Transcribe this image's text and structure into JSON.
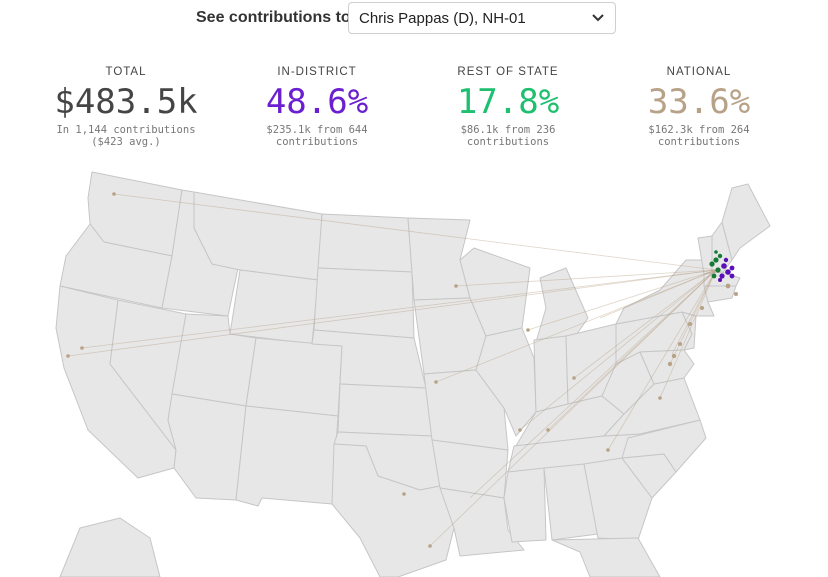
{
  "selector": {
    "label": "See contributions to",
    "selected": "Chris Pappas (D), NH-01"
  },
  "stats": [
    {
      "title": "TOTAL",
      "value": "$483.5k",
      "desc1": "In 1,144 contributions",
      "desc2": "($423 avg.)",
      "color": "#454545"
    },
    {
      "title": "IN-DISTRICT",
      "value": "48.6%",
      "desc1": "$235.1k from 644",
      "desc2": "contributions",
      "color": "#6a1fd0"
    },
    {
      "title": "REST OF STATE",
      "value": "17.8%",
      "desc1": "$86.1k from 236",
      "desc2": "contributions",
      "color": "#1ec070"
    },
    {
      "title": "NATIONAL",
      "value": "33.6%",
      "desc1": "$162.3k from 264",
      "desc2": "contributions",
      "color": "#b8a287"
    }
  ],
  "colors": {
    "map_fill": "#e7e7e7",
    "map_border": "#c6c6c6",
    "in_district": "#5b0fb8",
    "rest_of_state": "#157a35",
    "national": "#b8a287"
  }
}
